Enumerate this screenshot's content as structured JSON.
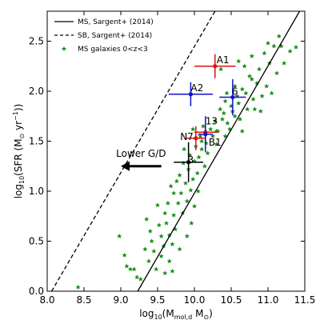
{
  "chart_data": {
    "type": "scatter",
    "xlabel": "log10(Mmol,d M⊙)",
    "ylabel": "log10(SFR (M⊙ yr−1))",
    "xlim": [
      8.0,
      11.5
    ],
    "ylim": [
      0.0,
      2.8
    ],
    "xticks": [
      8.0,
      8.5,
      9.0,
      9.5,
      10.0,
      10.5,
      11.0,
      11.5
    ],
    "yticks": [
      0.0,
      0.5,
      1.0,
      1.5,
      2.0,
      2.5
    ],
    "xtick_labels": [
      "8.0",
      "8.5",
      "9.0",
      "9.5",
      "10.0",
      "10.5",
      "11.0",
      "11.5"
    ],
    "ytick_labels": [
      "0.0",
      "0.5",
      "1.0",
      "1.5",
      "2.0",
      "2.5"
    ],
    "legend": {
      "placement": "top-left",
      "entries": [
        {
          "label": "MS, Sargent+ (2014)",
          "style": "solid",
          "color": "#000000"
        },
        {
          "label": "SB, Sargent+ (2014)",
          "style": "dashed",
          "color": "#000000"
        },
        {
          "label": "MS galaxies 0<z<3",
          "style": "star",
          "color": "#1a8a1a"
        }
      ]
    },
    "lines": [
      {
        "name": "MS, Sargent+ (2014)",
        "style": "solid",
        "color": "#000000",
        "x": [
          9.23,
          11.43
        ],
        "y": [
          0.0,
          2.8
        ]
      },
      {
        "name": "SB, Sargent+ (2014)",
        "style": "dashed",
        "color": "#000000",
        "x": [
          8.06,
          10.28
        ],
        "y": [
          0.0,
          2.8
        ]
      }
    ],
    "ms_galaxies": {
      "name": "MS galaxies 0<z<3",
      "color": "#1a8a1a",
      "points": [
        [
          8.42,
          0.04
        ],
        [
          8.98,
          0.55
        ],
        [
          9.08,
          0.25
        ],
        [
          9.13,
          0.22
        ],
        [
          9.18,
          0.22
        ],
        [
          9.05,
          0.36
        ],
        [
          9.22,
          0.14
        ],
        [
          9.27,
          0.12
        ],
        [
          9.35,
          0.72
        ],
        [
          9.33,
          0.42
        ],
        [
          9.38,
          0.3
        ],
        [
          9.4,
          0.6
        ],
        [
          9.42,
          0.5
        ],
        [
          9.45,
          0.4
        ],
        [
          9.48,
          0.22
        ],
        [
          9.5,
          0.86
        ],
        [
          9.52,
          0.66
        ],
        [
          9.55,
          0.55
        ],
        [
          9.55,
          0.35
        ],
        [
          9.58,
          0.45
        ],
        [
          9.6,
          0.78
        ],
        [
          9.62,
          0.68
        ],
        [
          9.64,
          0.88
        ],
        [
          9.66,
          0.56
        ],
        [
          9.66,
          0.3
        ],
        [
          9.68,
          1.05
        ],
        [
          9.7,
          0.47
        ],
        [
          9.72,
          0.98
        ],
        [
          9.72,
          0.76
        ],
        [
          9.74,
          0.62
        ],
        [
          9.76,
          1.1
        ],
        [
          9.78,
          0.88
        ],
        [
          9.8,
          1.16
        ],
        [
          9.8,
          0.42
        ],
        [
          9.82,
          0.98
        ],
        [
          9.84,
          0.78
        ],
        [
          9.85,
          1.28
        ],
        [
          9.86,
          1.42
        ],
        [
          9.88,
          1.08
        ],
        [
          9.9,
          0.9
        ],
        [
          9.92,
          1.22
        ],
        [
          9.94,
          1.36
        ],
        [
          9.95,
          1.01
        ],
        [
          9.96,
          0.68
        ],
        [
          9.98,
          1.12
        ],
        [
          10.0,
          1.3
        ],
        [
          10.0,
          0.85
        ],
        [
          10.02,
          1.45
        ],
        [
          10.04,
          1.18
        ],
        [
          10.05,
          1.0
        ],
        [
          10.06,
          1.34
        ],
        [
          10.08,
          1.55
        ],
        [
          10.1,
          1.42
        ],
        [
          10.12,
          1.65
        ],
        [
          10.14,
          1.25
        ],
        [
          10.16,
          1.48
        ],
        [
          10.18,
          1.38
        ],
        [
          10.22,
          1.62
        ],
        [
          10.25,
          1.55
        ],
        [
          10.28,
          1.7
        ],
        [
          10.3,
          1.47
        ],
        [
          10.32,
          1.6
        ],
        [
          10.35,
          1.82
        ],
        [
          10.38,
          1.72
        ],
        [
          10.4,
          1.78
        ],
        [
          10.42,
          1.9
        ],
        [
          10.42,
          1.55
        ],
        [
          10.45,
          1.68
        ],
        [
          10.48,
          1.62
        ],
        [
          10.5,
          1.85
        ],
        [
          10.52,
          1.8
        ],
        [
          10.55,
          2.05
        ],
        [
          10.55,
          1.75
        ],
        [
          10.58,
          1.95
        ],
        [
          10.6,
          1.88
        ],
        [
          10.62,
          1.72
        ],
        [
          10.65,
          2.02
        ],
        [
          10.65,
          1.6
        ],
        [
          10.68,
          2.25
        ],
        [
          10.7,
          1.98
        ],
        [
          10.72,
          1.82
        ],
        [
          10.75,
          2.15
        ],
        [
          10.78,
          2.35
        ],
        [
          10.8,
          1.92
        ],
        [
          10.82,
          1.82
        ],
        [
          10.85,
          2.08
        ],
        [
          10.88,
          2.22
        ],
        [
          10.9,
          1.8
        ],
        [
          10.92,
          1.95
        ],
        [
          10.95,
          2.38
        ],
        [
          10.98,
          2.05
        ],
        [
          11.0,
          2.48
        ],
        [
          11.02,
          2.28
        ],
        [
          11.05,
          1.98
        ],
        [
          11.08,
          2.45
        ],
        [
          11.12,
          2.18
        ],
        [
          11.15,
          2.55
        ],
        [
          11.18,
          2.45
        ],
        [
          11.22,
          2.28
        ],
        [
          11.3,
          2.4
        ],
        [
          11.38,
          2.44
        ],
        [
          10.3,
          1.6
        ],
        [
          10.36,
          2.22
        ],
        [
          10.44,
          1.98
        ],
        [
          10.6,
          2.3
        ],
        [
          10.78,
          2.12
        ],
        [
          10.1,
          1.5
        ],
        [
          9.98,
          1.62
        ],
        [
          9.9,
          0.55
        ],
        [
          9.6,
          0.18
        ],
        [
          9.7,
          0.2
        ]
      ]
    },
    "sources": [
      {
        "label": "A1",
        "x": 10.28,
        "y": 2.25,
        "xerr": 0.28,
        "yerr": 0.12,
        "color": "#dd1111"
      },
      {
        "label": "A2",
        "x": 9.95,
        "y": 1.97,
        "xerr": 0.3,
        "yerr": 0.12,
        "color": "#1111cc"
      },
      {
        "label": "6",
        "x": 10.52,
        "y": 1.94,
        "xerr": 0.18,
        "yerr": 0.18,
        "color": "#1111cc"
      },
      {
        "label": "13",
        "x": 10.15,
        "y": 1.59,
        "xerr": 0.15,
        "yerr": 0.12,
        "color": "#dd1111"
      },
      {
        "label": "N7",
        "x": 10.02,
        "y": 1.53,
        "xerr": 0.13,
        "yerr": 0.12,
        "color": "#dd1111"
      },
      {
        "label": "B1",
        "x": 10.15,
        "y": 1.57,
        "xerr": 0.1,
        "yerr": 0.18,
        "color": "#1111cc"
      },
      {
        "label": "3",
        "x": 9.92,
        "y": 1.29,
        "xerr": 0.2,
        "yerr": 0.2,
        "color": "#000000"
      }
    ],
    "annotation": {
      "text": "Lower G/D",
      "arrow_from": [
        9.55,
        1.25
      ],
      "arrow_to": [
        9.0,
        1.25
      ]
    }
  }
}
